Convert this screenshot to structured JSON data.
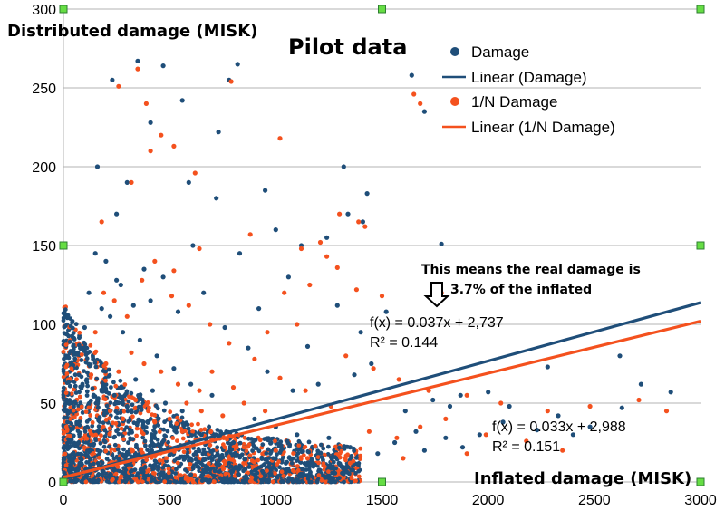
{
  "chart_data": {
    "type": "scatter",
    "title": "Pilot data",
    "xlabel": "Inflated damage (MISK)",
    "ylabel": "Distributed damage (MISK)",
    "xlim": [
      0,
      3000
    ],
    "ylim": [
      0,
      300
    ],
    "xticks": [
      "0",
      "500",
      "1000",
      "1500",
      "2000",
      "2500",
      "3000"
    ],
    "yticks": [
      "0",
      "50",
      "100",
      "150",
      "200",
      "250",
      "300"
    ],
    "grid": "horizontal",
    "legend_position": "top-right",
    "legend": [
      "Damage",
      "Linear (Damage)",
      "1/N Damage",
      "Linear (1/N Damage)"
    ],
    "colors": {
      "damage": "#1f4e79",
      "one_n_damage": "#f4511e"
    },
    "series": [
      {
        "name": "Damage",
        "color": "#1f4e79",
        "points": [
          [
            350,
            267
          ],
          [
            230,
            255
          ],
          [
            470,
            264
          ],
          [
            820,
            265
          ],
          [
            780,
            255
          ],
          [
            560,
            242
          ],
          [
            730,
            222
          ],
          [
            410,
            228
          ],
          [
            1640,
            258
          ],
          [
            1700,
            235
          ],
          [
            1320,
            200
          ],
          [
            1430,
            183
          ],
          [
            160,
            200
          ],
          [
            300,
            190
          ],
          [
            590,
            190
          ],
          [
            720,
            180
          ],
          [
            950,
            185
          ],
          [
            250,
            170
          ],
          [
            1780,
            151
          ],
          [
            1000,
            160
          ],
          [
            380,
            135
          ],
          [
            250,
            128
          ],
          [
            1340,
            170
          ],
          [
            1410,
            165
          ],
          [
            1060,
            130
          ],
          [
            920,
            110
          ],
          [
            610,
            150
          ],
          [
            1120,
            150
          ],
          [
            1240,
            155
          ],
          [
            830,
            145
          ],
          [
            1520,
            108
          ],
          [
            1400,
            95
          ],
          [
            1290,
            112
          ],
          [
            1150,
            86
          ],
          [
            2860,
            57
          ],
          [
            2620,
            80
          ],
          [
            2280,
            73
          ],
          [
            2720,
            62
          ],
          [
            2630,
            47
          ],
          [
            2100,
            48
          ],
          [
            1870,
            55
          ],
          [
            1820,
            48
          ],
          [
            2000,
            57
          ],
          [
            1740,
            52
          ],
          [
            1450,
            75
          ],
          [
            1370,
            68
          ],
          [
            1610,
            45
          ],
          [
            1960,
            30
          ],
          [
            2230,
            33
          ],
          [
            2070,
            38
          ],
          [
            2330,
            42
          ],
          [
            1660,
            32
          ],
          [
            1800,
            28
          ],
          [
            2480,
            35
          ],
          [
            1200,
            62
          ],
          [
            1080,
            58
          ],
          [
            960,
            70
          ],
          [
            870,
            85
          ],
          [
            760,
            98
          ],
          [
            660,
            120
          ],
          [
            540,
            108
          ],
          [
            470,
            130
          ],
          [
            410,
            115
          ],
          [
            330,
            112
          ],
          [
            270,
            125
          ],
          [
            200,
            140
          ],
          [
            150,
            145
          ],
          [
            120,
            120
          ],
          [
            100,
            98
          ],
          [
            80,
            85
          ],
          [
            2400,
            30
          ],
          [
            1560,
            25
          ],
          [
            1700,
            20
          ],
          [
            1880,
            22
          ],
          [
            900,
            40
          ],
          [
            1000,
            35
          ],
          [
            1100,
            30
          ],
          [
            1250,
            28
          ],
          [
            1350,
            22
          ],
          [
            1480,
            18
          ],
          [
            700,
            55
          ],
          [
            600,
            62
          ],
          [
            520,
            72
          ],
          [
            440,
            80
          ],
          [
            360,
            90
          ],
          [
            280,
            95
          ],
          [
            220,
            105
          ],
          [
            180,
            110
          ],
          [
            140,
            78
          ],
          [
            110,
            65
          ],
          [
            650,
            30
          ],
          [
            800,
            25
          ],
          [
            560,
            45
          ],
          [
            480,
            50
          ],
          [
            420,
            58
          ],
          [
            340,
            65
          ],
          [
            300,
            48
          ],
          [
            240,
            55
          ],
          [
            190,
            60
          ],
          [
            160,
            52
          ]
        ]
      },
      {
        "name": "1/N Damage",
        "color": "#f4511e",
        "points": [
          [
            350,
            262
          ],
          [
            260,
            251
          ],
          [
            390,
            240
          ],
          [
            460,
            220
          ],
          [
            520,
            213
          ],
          [
            790,
            254
          ],
          [
            1650,
            246
          ],
          [
            1680,
            240
          ],
          [
            1020,
            218
          ],
          [
            410,
            210
          ],
          [
            320,
            190
          ],
          [
            620,
            196
          ],
          [
            180,
            165
          ],
          [
            1300,
            170
          ],
          [
            1390,
            165
          ],
          [
            1420,
            162
          ],
          [
            880,
            157
          ],
          [
            640,
            148
          ],
          [
            1120,
            148
          ],
          [
            1240,
            143
          ],
          [
            1290,
            136
          ],
          [
            520,
            134
          ],
          [
            1210,
            152
          ],
          [
            1040,
            120
          ],
          [
            1160,
            125
          ],
          [
            1380,
            122
          ],
          [
            1500,
            118
          ],
          [
            1780,
            120
          ],
          [
            1100,
            100
          ],
          [
            960,
            95
          ],
          [
            2840,
            45
          ],
          [
            2710,
            52
          ],
          [
            2480,
            48
          ],
          [
            2280,
            45
          ],
          [
            2060,
            50
          ],
          [
            1900,
            55
          ],
          [
            1720,
            58
          ],
          [
            1580,
            65
          ],
          [
            1460,
            72
          ],
          [
            1330,
            80
          ],
          [
            1800,
            40
          ],
          [
            1680,
            35
          ],
          [
            1990,
            30
          ],
          [
            2180,
            26
          ],
          [
            1570,
            28
          ],
          [
            1440,
            32
          ],
          [
            1260,
            48
          ],
          [
            1140,
            58
          ],
          [
            1020,
            66
          ],
          [
            900,
            78
          ],
          [
            780,
            88
          ],
          [
            690,
            100
          ],
          [
            590,
            112
          ],
          [
            510,
            118
          ],
          [
            430,
            140
          ],
          [
            370,
            128
          ],
          [
            300,
            105
          ],
          [
            240,
            115
          ],
          [
            190,
            120
          ],
          [
            150,
            95
          ],
          [
            2350,
            20
          ],
          [
            1900,
            18
          ],
          [
            1600,
            15
          ],
          [
            1350,
            12
          ],
          [
            1150,
            15
          ],
          [
            1000,
            20
          ],
          [
            850,
            22
          ],
          [
            700,
            28
          ],
          [
            560,
            32
          ],
          [
            430,
            38
          ],
          [
            800,
            60
          ],
          [
            700,
            70
          ],
          [
            640,
            58
          ],
          [
            540,
            62
          ],
          [
            460,
            70
          ],
          [
            380,
            75
          ],
          [
            320,
            82
          ],
          [
            260,
            70
          ],
          [
            200,
            75
          ],
          [
            130,
            68
          ],
          [
            950,
            45
          ],
          [
            850,
            50
          ],
          [
            750,
            42
          ],
          [
            650,
            45
          ],
          [
            580,
            50
          ],
          [
            500,
            40
          ],
          [
            400,
            45
          ],
          [
            340,
            52
          ],
          [
            280,
            40
          ],
          [
            220,
            45
          ]
        ]
      }
    ],
    "trendlines": [
      {
        "name": "Linear (Damage)",
        "slope": 0.037,
        "intercept": 2.737,
        "color": "#1f4e79",
        "equation": "f(x) = 0.037x + 2,737",
        "r2": "R² = 0.144"
      },
      {
        "name": "Linear (1/N Damage)",
        "slope": 0.033,
        "intercept": 2.988,
        "color": "#f4511e",
        "equation": "f(x) = 0.033x + 2,988",
        "r2": "R² = 0.151"
      }
    ],
    "annotation": {
      "line1": "This means the real damage is",
      "line2": "3.7% of the inflated"
    }
  }
}
